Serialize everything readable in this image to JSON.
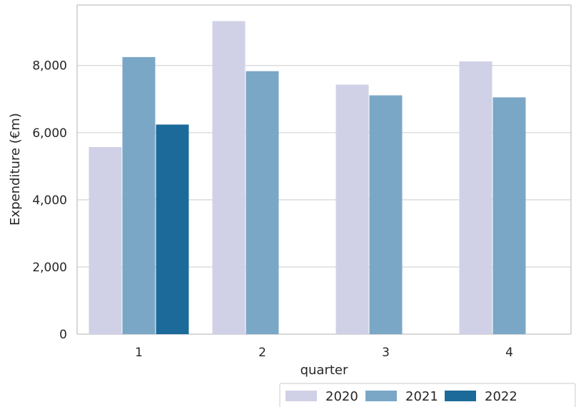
{
  "chart_data": {
    "type": "bar",
    "xlabel": "quarter",
    "ylabel": "Expenditure  (€m)",
    "categories": [
      "1",
      "2",
      "3",
      "4"
    ],
    "series": [
      {
        "name": "2020",
        "color": "#d0d1e6",
        "values": [
          5570,
          9320,
          7430,
          8120
        ]
      },
      {
        "name": "2021",
        "color": "#7ba7c7",
        "values": [
          8250,
          7830,
          7110,
          7050
        ]
      },
      {
        "name": "2022",
        "color": "#1c6a9a",
        "values": [
          6240,
          null,
          null,
          null
        ]
      }
    ],
    "ylim": [
      0,
      9800
    ],
    "yticks": [
      0,
      2000,
      4000,
      6000,
      8000
    ],
    "ytick_labels": [
      "0",
      "2,000",
      "4,000",
      "6,000",
      "8,000"
    ],
    "grid": "horizontal",
    "legend_position": "bottom-right"
  }
}
